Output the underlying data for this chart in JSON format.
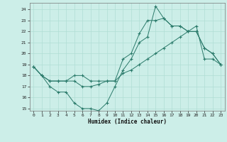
{
  "xlabel": "Humidex (Indice chaleur)",
  "bg_color": "#cceee8",
  "grid_color": "#b0ddd5",
  "line_color": "#2a7a6a",
  "xlim": [
    -0.5,
    23.5
  ],
  "ylim": [
    14.8,
    24.6
  ],
  "yticks": [
    15,
    16,
    17,
    18,
    19,
    20,
    21,
    22,
    23,
    24
  ],
  "xticks": [
    0,
    1,
    2,
    3,
    4,
    5,
    6,
    7,
    8,
    9,
    10,
    11,
    12,
    13,
    14,
    15,
    16,
    17,
    18,
    19,
    20,
    21,
    22,
    23
  ],
  "line1_x": [
    0,
    1,
    2,
    3,
    4,
    5,
    6,
    7,
    8,
    9,
    10,
    11,
    12,
    13,
    14,
    15,
    16,
    17,
    18,
    19,
    20,
    21,
    22,
    23
  ],
  "line1_y": [
    18.8,
    18.0,
    17.0,
    16.5,
    16.5,
    15.5,
    15.0,
    15.0,
    14.8,
    15.5,
    17.0,
    18.5,
    19.5,
    21.0,
    21.5,
    24.3,
    23.2,
    22.5,
    22.5,
    22.0,
    22.0,
    20.5,
    20.0,
    19.0
  ],
  "line2_x": [
    0,
    1,
    2,
    3,
    4,
    5,
    6,
    7,
    8,
    9,
    10,
    11,
    12,
    13,
    14,
    15,
    16,
    17,
    18,
    19,
    20,
    21,
    22,
    23
  ],
  "line2_y": [
    18.8,
    18.0,
    17.5,
    17.5,
    17.5,
    17.5,
    17.0,
    17.0,
    17.2,
    17.5,
    17.5,
    19.5,
    20.0,
    21.8,
    23.0,
    23.0,
    23.2,
    22.5,
    22.5,
    22.0,
    22.0,
    20.5,
    20.0,
    19.0
  ],
  "line3_x": [
    0,
    1,
    2,
    3,
    4,
    5,
    6,
    7,
    8,
    9,
    10,
    11,
    12,
    13,
    14,
    15,
    16,
    17,
    18,
    19,
    20,
    21,
    22,
    23
  ],
  "line3_y": [
    18.8,
    18.0,
    17.5,
    17.5,
    17.5,
    18.0,
    18.0,
    17.5,
    17.5,
    17.5,
    17.5,
    18.2,
    18.5,
    19.0,
    19.5,
    20.0,
    20.5,
    21.0,
    21.5,
    22.0,
    22.5,
    19.5,
    19.5,
    19.0
  ]
}
